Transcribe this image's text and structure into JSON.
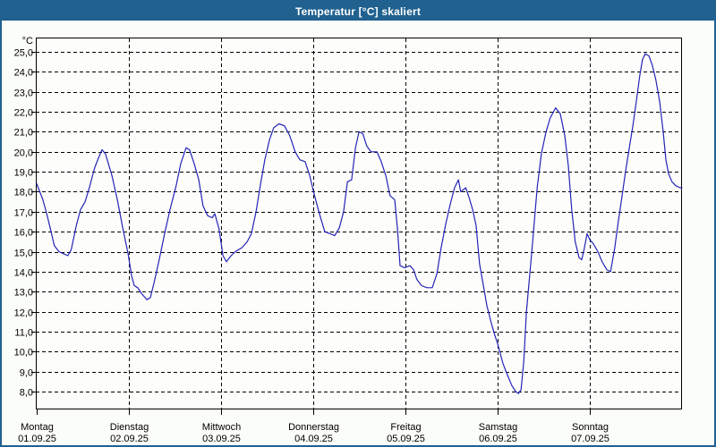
{
  "window": {
    "title_bar": "Temperatur [°C] skaliert"
  },
  "colors": {
    "frame_and_titlebar": "#20618f",
    "title_text": "#ffffff",
    "background": "#fbfdf8",
    "plot_background": "#fdfefb",
    "grid": "#000000",
    "line": "#2323b8"
  },
  "chart_data": {
    "type": "line",
    "title": "Temperatur [°C] skaliert",
    "grid": "dashed horizontal and vertical (day boundaries)",
    "legend": "none",
    "y_axis": {
      "unit_label": "°C",
      "min": 8,
      "max": 25,
      "tick_step": 1,
      "tick_labels": [
        "25,0",
        "24,0",
        "23,0",
        "22,0",
        "21,0",
        "20,0",
        "19,0",
        "18,0",
        "17,0",
        "16,0",
        "15,0",
        "14,0",
        "13,0",
        "12,0",
        "11,0",
        "10,0",
        "9,0",
        "8,0"
      ]
    },
    "x_axis": {
      "hours_total": 168,
      "days": [
        {
          "weekday": "Montag",
          "date": "01.09.25"
        },
        {
          "weekday": "Dienstag",
          "date": "02.09.25"
        },
        {
          "weekday": "Mittwoch",
          "date": "03.09.25"
        },
        {
          "weekday": "Donnerstag",
          "date": "04.09.25"
        },
        {
          "weekday": "Freitag",
          "date": "05.09.25"
        },
        {
          "weekday": "Samstag",
          "date": "06.09.25"
        },
        {
          "weekday": "Sonntag",
          "date": "07.09.25"
        }
      ]
    },
    "series": [
      {
        "name": "Temperatur",
        "color": "#2323b8",
        "points": [
          [
            0,
            18.4
          ],
          [
            1.6,
            17.6
          ],
          [
            2.6,
            16.9
          ],
          [
            3.5,
            16.2
          ],
          [
            4.6,
            15.3
          ],
          [
            5.8,
            15.0
          ],
          [
            7.0,
            14.9
          ],
          [
            8.1,
            14.8
          ],
          [
            9.0,
            15.1
          ],
          [
            10.3,
            16.3
          ],
          [
            11.4,
            17.1
          ],
          [
            12.6,
            17.5
          ],
          [
            13.7,
            18.2
          ],
          [
            15.1,
            19.2
          ],
          [
            16.1,
            19.7
          ],
          [
            17.0,
            20.1
          ],
          [
            17.9,
            19.9
          ],
          [
            19.6,
            18.8
          ],
          [
            21.0,
            17.6
          ],
          [
            22.4,
            16.2
          ],
          [
            23.8,
            14.9
          ],
          [
            24.7,
            13.8
          ],
          [
            25.4,
            13.3
          ],
          [
            26.3,
            13.2
          ],
          [
            27.3,
            12.9
          ],
          [
            28.7,
            12.6
          ],
          [
            29.6,
            12.7
          ],
          [
            30.5,
            13.4
          ],
          [
            31.9,
            14.6
          ],
          [
            33.3,
            15.9
          ],
          [
            34.7,
            17.1
          ],
          [
            36.3,
            18.3
          ],
          [
            37.5,
            19.4
          ],
          [
            38.9,
            20.2
          ],
          [
            39.8,
            20.1
          ],
          [
            41.0,
            19.4
          ],
          [
            42.2,
            18.6
          ],
          [
            43.3,
            17.3
          ],
          [
            44.5,
            16.8
          ],
          [
            45.7,
            16.7
          ],
          [
            46.4,
            16.9
          ],
          [
            47.5,
            16.1
          ],
          [
            48.5,
            14.8
          ],
          [
            49.4,
            14.5
          ],
          [
            50.6,
            14.8
          ],
          [
            51.7,
            15.0
          ],
          [
            53.4,
            15.2
          ],
          [
            54.8,
            15.5
          ],
          [
            55.9,
            15.9
          ],
          [
            57.1,
            17.0
          ],
          [
            58.3,
            18.4
          ],
          [
            59.4,
            19.6
          ],
          [
            60.6,
            20.6
          ],
          [
            61.7,
            21.2
          ],
          [
            63.1,
            21.4
          ],
          [
            64.5,
            21.3
          ],
          [
            65.9,
            20.8
          ],
          [
            67.3,
            20.0
          ],
          [
            68.5,
            19.6
          ],
          [
            69.9,
            19.5
          ],
          [
            71.1,
            18.8
          ],
          [
            72.2,
            17.9
          ],
          [
            73.6,
            16.9
          ],
          [
            75.0,
            16.0
          ],
          [
            76.4,
            15.9
          ],
          [
            77.6,
            15.8
          ],
          [
            78.8,
            16.2
          ],
          [
            79.9,
            17.0
          ],
          [
            80.9,
            18.5
          ],
          [
            82.0,
            18.6
          ],
          [
            83.0,
            20.2
          ],
          [
            83.9,
            21.0
          ],
          [
            84.9,
            20.9
          ],
          [
            85.9,
            20.3
          ],
          [
            87.0,
            20.0
          ],
          [
            88.6,
            20.0
          ],
          [
            89.7,
            19.5
          ],
          [
            90.9,
            18.8
          ],
          [
            92.0,
            17.8
          ],
          [
            93.2,
            17.6
          ],
          [
            93.9,
            16.2
          ],
          [
            94.6,
            14.3
          ],
          [
            95.8,
            14.2
          ],
          [
            97.2,
            14.3
          ],
          [
            98.1,
            14.1
          ],
          [
            99.0,
            13.6
          ],
          [
            100.2,
            13.3
          ],
          [
            101.6,
            13.2
          ],
          [
            103.0,
            13.2
          ],
          [
            104.2,
            13.9
          ],
          [
            105.3,
            15.2
          ],
          [
            106.5,
            16.4
          ],
          [
            107.7,
            17.4
          ],
          [
            108.8,
            18.2
          ],
          [
            109.8,
            18.6
          ],
          [
            110.4,
            18.0
          ],
          [
            111.7,
            18.2
          ],
          [
            112.6,
            17.7
          ],
          [
            113.5,
            17.1
          ],
          [
            114.4,
            16.3
          ],
          [
            115.3,
            14.4
          ],
          [
            116.3,
            13.3
          ],
          [
            117.2,
            12.3
          ],
          [
            118.4,
            11.4
          ],
          [
            119.3,
            10.8
          ],
          [
            120.0,
            10.4
          ],
          [
            121.4,
            9.4
          ],
          [
            122.6,
            8.8
          ],
          [
            123.7,
            8.3
          ],
          [
            124.7,
            8.0
          ],
          [
            125.4,
            7.9
          ],
          [
            126.1,
            8.1
          ],
          [
            126.8,
            9.5
          ],
          [
            127.5,
            12.0
          ],
          [
            128.2,
            13.5
          ],
          [
            128.9,
            15.0
          ],
          [
            129.6,
            16.6
          ],
          [
            130.3,
            18.2
          ],
          [
            131.4,
            19.9
          ],
          [
            132.6,
            21.0
          ],
          [
            133.7,
            21.7
          ],
          [
            135.1,
            22.2
          ],
          [
            136.3,
            21.9
          ],
          [
            137.5,
            20.8
          ],
          [
            138.4,
            19.3
          ],
          [
            139.3,
            17.1
          ],
          [
            140.2,
            15.5
          ],
          [
            141.2,
            14.7
          ],
          [
            141.9,
            14.6
          ],
          [
            142.6,
            15.2
          ],
          [
            143.3,
            15.9
          ],
          [
            144.0,
            15.6
          ],
          [
            144.9,
            15.4
          ],
          [
            146.1,
            15.0
          ],
          [
            147.2,
            14.5
          ],
          [
            148.4,
            14.1
          ],
          [
            149.4,
            14.0
          ],
          [
            150.5,
            15.2
          ],
          [
            151.4,
            16.5
          ],
          [
            152.4,
            17.8
          ],
          [
            153.3,
            19.0
          ],
          [
            154.2,
            20.1
          ],
          [
            155.2,
            21.3
          ],
          [
            156.1,
            22.5
          ],
          [
            157.0,
            23.8
          ],
          [
            157.7,
            24.6
          ],
          [
            158.4,
            24.9
          ],
          [
            159.4,
            24.8
          ],
          [
            160.3,
            24.3
          ],
          [
            161.2,
            23.6
          ],
          [
            162.2,
            22.5
          ],
          [
            163.1,
            21.0
          ],
          [
            163.8,
            19.6
          ],
          [
            164.5,
            18.9
          ],
          [
            165.4,
            18.5
          ],
          [
            166.4,
            18.3
          ],
          [
            167.5,
            18.2
          ],
          [
            168.0,
            18.2
          ]
        ]
      }
    ]
  }
}
